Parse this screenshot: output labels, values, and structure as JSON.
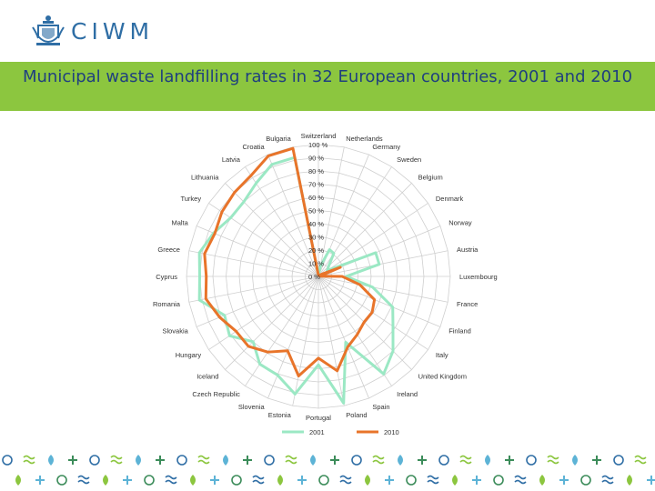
{
  "header": {
    "logo_text": "CIWM",
    "title": "Municipal waste landfilling rates in 32 European countries, 2001 and 2010"
  },
  "colors": {
    "title_band": "#8cc63f",
    "title_text": "#1f3f7f",
    "series_2001": "#9be8c4",
    "series_2010": "#e8742a"
  },
  "footer": {
    "icon": "decorative-pattern"
  },
  "chart_data": {
    "type": "radar",
    "title": "",
    "categories": [
      "Switzerland",
      "Netherlands",
      "Germany",
      "Sweden",
      "Belgium",
      "Denmark",
      "Norway",
      "Austria",
      "Luxembourg",
      "France",
      "Finland",
      "Italy",
      "United Kingdom",
      "Ireland",
      "Spain",
      "Poland",
      "Portugal",
      "Estonia",
      "Slovenia",
      "Czech Republic",
      "Iceland",
      "Hungary",
      "Slovakia",
      "Romania",
      "Cyprus",
      "Greece",
      "Malta",
      "Turkey",
      "Lithuania",
      "Latvia",
      "Croatia",
      "Bulgaria"
    ],
    "radial_ticks": [
      "0 %",
      "10 %",
      "20 %",
      "30 %",
      "40 %",
      "50 %",
      "60 %",
      "70 %",
      "80 %",
      "90 %",
      "100 %"
    ],
    "rlim": [
      0,
      100
    ],
    "grid": true,
    "legend_position": "bottom",
    "series": [
      {
        "name": "2001",
        "values": [
          1,
          8,
          22,
          21,
          11,
          8,
          47,
          47,
          21,
          42,
          61,
          68,
          80,
          89,
          54,
          98,
          67,
          91,
          81,
          80,
          70,
          81,
          77,
          92,
          90,
          92,
          86,
          80,
          80,
          85,
          92,
          92
        ]
      },
      {
        "name": "2010",
        "values": [
          1,
          1,
          1,
          1,
          1,
          3,
          18,
          1,
          18,
          32,
          46,
          49,
          49,
          53,
          58,
          73,
          62,
          77,
          61,
          69,
          75,
          75,
          81,
          87,
          85,
          88,
          85,
          88,
          90,
          92,
          99,
          99
        ]
      }
    ]
  }
}
